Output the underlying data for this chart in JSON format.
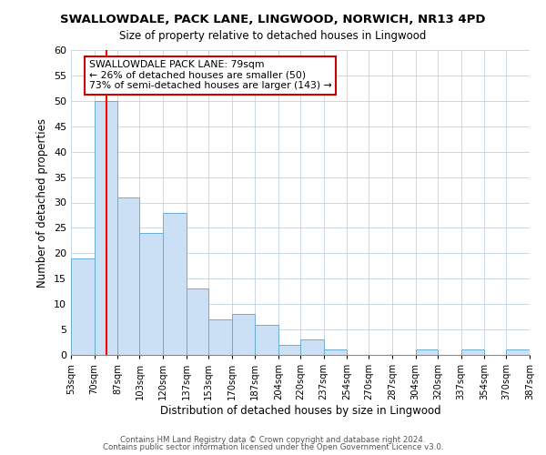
{
  "title": "SWALLOWDALE, PACK LANE, LINGWOOD, NORWICH, NR13 4PD",
  "subtitle": "Size of property relative to detached houses in Lingwood",
  "xlabel": "Distribution of detached houses by size in Lingwood",
  "ylabel": "Number of detached properties",
  "bar_color": "#cce0f5",
  "bar_edge_color": "#6badd6",
  "red_line_x": 79,
  "bins": [
    53,
    70,
    87,
    103,
    120,
    137,
    153,
    170,
    187,
    204,
    220,
    237,
    254,
    270,
    287,
    304,
    320,
    337,
    354,
    370,
    387
  ],
  "bar_heights": [
    19,
    50,
    31,
    24,
    28,
    13,
    7,
    8,
    6,
    2,
    3,
    1,
    0,
    0,
    0,
    1,
    0,
    1,
    0,
    1
  ],
  "xlabels": [
    "53sqm",
    "70sqm",
    "87sqm",
    "103sqm",
    "120sqm",
    "137sqm",
    "153sqm",
    "170sqm",
    "187sqm",
    "204sqm",
    "220sqm",
    "237sqm",
    "254sqm",
    "270sqm",
    "287sqm",
    "304sqm",
    "320sqm",
    "337sqm",
    "354sqm",
    "370sqm",
    "387sqm"
  ],
  "ylim": [
    0,
    60
  ],
  "yticks": [
    0,
    5,
    10,
    15,
    20,
    25,
    30,
    35,
    40,
    45,
    50,
    55,
    60
  ],
  "annotation_title": "SWALLOWDALE PACK LANE: 79sqm",
  "annotation_line1": "← 26% of detached houses are smaller (50)",
  "annotation_line2": "73% of semi-detached houses are larger (143) →",
  "annotation_box_color": "#ffffff",
  "annotation_box_edge": "#cc0000",
  "footnote1": "Contains HM Land Registry data © Crown copyright and database right 2024.",
  "footnote2": "Contains public sector information licensed under the Open Government Licence v3.0."
}
